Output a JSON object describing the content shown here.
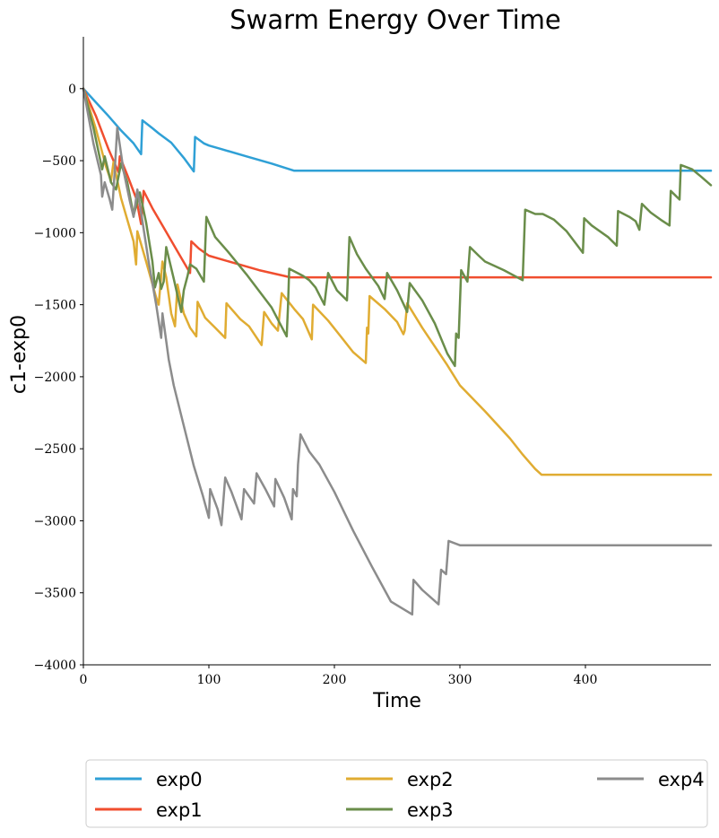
{
  "chart_data": {
    "type": "line",
    "title": "Swarm Energy Over Time",
    "xlabel": "Time",
    "ylabel": "c1-exp0",
    "xlim": [
      0,
      500
    ],
    "ylim": [
      -4000,
      360
    ],
    "xticks": [
      0,
      100,
      200,
      300,
      400
    ],
    "yticks": [
      0,
      -500,
      -1000,
      -1500,
      -2000,
      -2500,
      -3000,
      -3500,
      -4000
    ],
    "xtick_labels": [
      "0",
      "100",
      "200",
      "300",
      "400"
    ],
    "ytick_labels": [
      "0",
      "−500",
      "−1000",
      "−1500",
      "−2000",
      "−2500",
      "−3000",
      "−3500",
      "−4000"
    ],
    "grid": false,
    "legend_position": "bottom",
    "series": [
      {
        "name": "exp0",
        "color": "#2fa0d6",
        "points": [
          [
            0,
            0
          ],
          [
            10,
            -95
          ],
          [
            20,
            -190
          ],
          [
            30,
            -290
          ],
          [
            40,
            -380
          ],
          [
            46,
            -455
          ],
          [
            47,
            -220
          ],
          [
            55,
            -275
          ],
          [
            60,
            -310
          ],
          [
            70,
            -375
          ],
          [
            80,
            -480
          ],
          [
            88,
            -575
          ],
          [
            89,
            -335
          ],
          [
            96,
            -380
          ],
          [
            100,
            -395
          ],
          [
            110,
            -420
          ],
          [
            130,
            -470
          ],
          [
            150,
            -520
          ],
          [
            168,
            -570
          ],
          [
            200,
            -570
          ],
          [
            300,
            -570
          ],
          [
            400,
            -570
          ],
          [
            500,
            -570
          ]
        ]
      },
      {
        "name": "exp1",
        "color": "#f04e2f",
        "points": [
          [
            0,
            0
          ],
          [
            10,
            -190
          ],
          [
            20,
            -420
          ],
          [
            28,
            -580
          ],
          [
            29,
            -470
          ],
          [
            35,
            -600
          ],
          [
            42,
            -760
          ],
          [
            46,
            -940
          ],
          [
            48,
            -710
          ],
          [
            55,
            -830
          ],
          [
            65,
            -980
          ],
          [
            75,
            -1130
          ],
          [
            85,
            -1280
          ],
          [
            86,
            -1060
          ],
          [
            92,
            -1110
          ],
          [
            100,
            -1160
          ],
          [
            120,
            -1210
          ],
          [
            140,
            -1260
          ],
          [
            160,
            -1300
          ],
          [
            165,
            -1310
          ],
          [
            200,
            -1310
          ],
          [
            300,
            -1310
          ],
          [
            400,
            -1310
          ],
          [
            500,
            -1310
          ]
        ]
      },
      {
        "name": "exp2",
        "color": "#e0ac32",
        "points": [
          [
            0,
            0
          ],
          [
            10,
            -280
          ],
          [
            18,
            -540
          ],
          [
            22,
            -640
          ],
          [
            24,
            -510
          ],
          [
            30,
            -760
          ],
          [
            40,
            -1060
          ],
          [
            42,
            -1220
          ],
          [
            43,
            -990
          ],
          [
            50,
            -1200
          ],
          [
            58,
            -1450
          ],
          [
            60,
            -1500
          ],
          [
            63,
            -1200
          ],
          [
            66,
            -1310
          ],
          [
            70,
            -1560
          ],
          [
            73,
            -1650
          ],
          [
            75,
            -1360
          ],
          [
            80,
            -1560
          ],
          [
            85,
            -1660
          ],
          [
            90,
            -1720
          ],
          [
            91,
            -1480
          ],
          [
            97,
            -1590
          ],
          [
            105,
            -1660
          ],
          [
            113,
            -1730
          ],
          [
            114,
            -1490
          ],
          [
            125,
            -1600
          ],
          [
            132,
            -1650
          ],
          [
            142,
            -1780
          ],
          [
            144,
            -1550
          ],
          [
            150,
            -1630
          ],
          [
            155,
            -1680
          ],
          [
            158,
            -1420
          ],
          [
            168,
            -1530
          ],
          [
            175,
            -1600
          ],
          [
            182,
            -1740
          ],
          [
            183,
            -1500
          ],
          [
            195,
            -1610
          ],
          [
            205,
            -1720
          ],
          [
            215,
            -1830
          ],
          [
            225,
            -1905
          ],
          [
            226,
            -1660
          ],
          [
            227,
            -1700
          ],
          [
            228,
            -1440
          ],
          [
            240,
            -1530
          ],
          [
            250,
            -1620
          ],
          [
            255,
            -1705
          ],
          [
            256,
            -1680
          ],
          [
            258,
            -1490
          ],
          [
            270,
            -1660
          ],
          [
            290,
            -1920
          ],
          [
            300,
            -2060
          ],
          [
            320,
            -2240
          ],
          [
            340,
            -2430
          ],
          [
            350,
            -2540
          ],
          [
            360,
            -2640
          ],
          [
            365,
            -2680
          ],
          [
            400,
            -2680
          ],
          [
            500,
            -2680
          ]
        ]
      },
      {
        "name": "exp3",
        "color": "#6a8d4a",
        "points": [
          [
            0,
            0
          ],
          [
            8,
            -270
          ],
          [
            15,
            -560
          ],
          [
            17,
            -470
          ],
          [
            22,
            -650
          ],
          [
            26,
            -700
          ],
          [
            30,
            -520
          ],
          [
            35,
            -650
          ],
          [
            40,
            -880
          ],
          [
            45,
            -720
          ],
          [
            50,
            -930
          ],
          [
            55,
            -1200
          ],
          [
            57,
            -1380
          ],
          [
            60,
            -1280
          ],
          [
            62,
            -1390
          ],
          [
            64,
            -1340
          ],
          [
            66,
            -1100
          ],
          [
            72,
            -1320
          ],
          [
            78,
            -1550
          ],
          [
            80,
            -1400
          ],
          [
            83,
            -1300
          ],
          [
            85,
            -1220
          ],
          [
            90,
            -1250
          ],
          [
            96,
            -1340
          ],
          [
            98,
            -890
          ],
          [
            105,
            -1030
          ],
          [
            115,
            -1130
          ],
          [
            130,
            -1290
          ],
          [
            150,
            -1520
          ],
          [
            162,
            -1720
          ],
          [
            163,
            -1520
          ],
          [
            164,
            -1250
          ],
          [
            175,
            -1300
          ],
          [
            180,
            -1330
          ],
          [
            185,
            -1380
          ],
          [
            192,
            -1500
          ],
          [
            195,
            -1280
          ],
          [
            202,
            -1400
          ],
          [
            210,
            -1470
          ],
          [
            212,
            -1030
          ],
          [
            218,
            -1150
          ],
          [
            225,
            -1250
          ],
          [
            235,
            -1370
          ],
          [
            240,
            -1460
          ],
          [
            242,
            -1280
          ],
          [
            250,
            -1400
          ],
          [
            258,
            -1550
          ],
          [
            260,
            -1350
          ],
          [
            270,
            -1470
          ],
          [
            280,
            -1630
          ],
          [
            290,
            -1840
          ],
          [
            296,
            -1925
          ],
          [
            297,
            -1700
          ],
          [
            299,
            -1730
          ],
          [
            301,
            -1260
          ],
          [
            306,
            -1340
          ],
          [
            308,
            -1100
          ],
          [
            315,
            -1160
          ],
          [
            320,
            -1200
          ],
          [
            335,
            -1260
          ],
          [
            350,
            -1330
          ],
          [
            352,
            -840
          ],
          [
            360,
            -870
          ],
          [
            366,
            -870
          ],
          [
            375,
            -910
          ],
          [
            385,
            -990
          ],
          [
            398,
            -1140
          ],
          [
            399,
            -900
          ],
          [
            405,
            -950
          ],
          [
            418,
            -1030
          ],
          [
            425,
            -1090
          ],
          [
            426,
            -850
          ],
          [
            435,
            -890
          ],
          [
            440,
            -920
          ],
          [
            443,
            -980
          ],
          [
            445,
            -800
          ],
          [
            452,
            -860
          ],
          [
            460,
            -910
          ],
          [
            467,
            -950
          ],
          [
            468,
            -710
          ],
          [
            475,
            -770
          ],
          [
            476,
            -530
          ],
          [
            485,
            -560
          ],
          [
            492,
            -610
          ],
          [
            500,
            -670
          ]
        ]
      },
      {
        "name": "exp4",
        "color": "#8c8c8c",
        "points": [
          [
            0,
            0
          ],
          [
            8,
            -380
          ],
          [
            14,
            -600
          ],
          [
            15,
            -750
          ],
          [
            17,
            -650
          ],
          [
            21,
            -770
          ],
          [
            23,
            -840
          ],
          [
            25,
            -570
          ],
          [
            27,
            -270
          ],
          [
            32,
            -570
          ],
          [
            37,
            -780
          ],
          [
            40,
            -890
          ],
          [
            43,
            -700
          ],
          [
            46,
            -860
          ],
          [
            52,
            -1200
          ],
          [
            58,
            -1500
          ],
          [
            62,
            -1730
          ],
          [
            63,
            -1560
          ],
          [
            68,
            -1880
          ],
          [
            72,
            -2060
          ],
          [
            80,
            -2340
          ],
          [
            88,
            -2620
          ],
          [
            95,
            -2820
          ],
          [
            100,
            -2980
          ],
          [
            101,
            -2780
          ],
          [
            107,
            -2920
          ],
          [
            110,
            -3030
          ],
          [
            113,
            -2700
          ],
          [
            118,
            -2800
          ],
          [
            126,
            -2990
          ],
          [
            128,
            -2780
          ],
          [
            136,
            -2880
          ],
          [
            138,
            -2670
          ],
          [
            145,
            -2780
          ],
          [
            152,
            -2900
          ],
          [
            153,
            -2710
          ],
          [
            160,
            -2840
          ],
          [
            166,
            -2990
          ],
          [
            167,
            -2780
          ],
          [
            170,
            -2830
          ],
          [
            171,
            -2610
          ],
          [
            173,
            -2400
          ],
          [
            180,
            -2520
          ],
          [
            188,
            -2610
          ],
          [
            200,
            -2800
          ],
          [
            215,
            -3070
          ],
          [
            230,
            -3320
          ],
          [
            245,
            -3560
          ],
          [
            262,
            -3650
          ],
          [
            263,
            -3410
          ],
          [
            270,
            -3480
          ],
          [
            283,
            -3580
          ],
          [
            285,
            -3340
          ],
          [
            289,
            -3370
          ],
          [
            291,
            -3140
          ],
          [
            300,
            -3170
          ],
          [
            400,
            -3170
          ],
          [
            500,
            -3170
          ]
        ]
      }
    ]
  }
}
